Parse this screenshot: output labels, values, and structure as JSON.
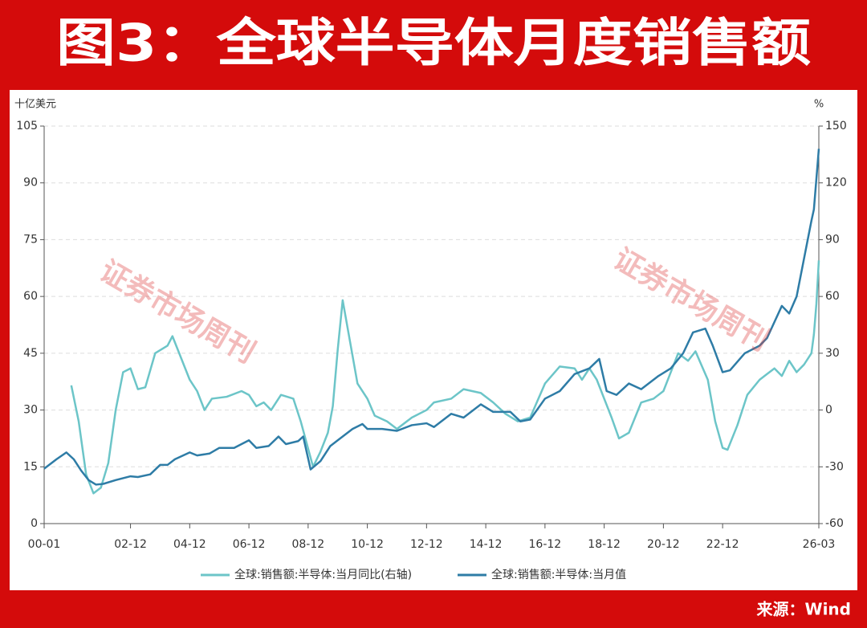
{
  "chart_data": {
    "type": "line",
    "title": "图3：全球半导体月度销售额",
    "source": "来源：Wind",
    "watermark": "证券市场周刊",
    "y_label": "十亿美元",
    "y2_label": "%",
    "xlim": [
      "00-01",
      "26-03"
    ],
    "xticks": [
      "00-01",
      "02-12",
      "04-12",
      "06-12",
      "08-12",
      "10-12",
      "12-12",
      "14-12",
      "16-12",
      "18-12",
      "20-12",
      "22-12",
      "26-03"
    ],
    "ylim": [
      0,
      105
    ],
    "yticks": [
      0,
      15,
      30,
      45,
      60,
      75,
      90,
      105
    ],
    "y2lim": [
      -60,
      150
    ],
    "y2ticks": [
      -60,
      -30,
      0,
      30,
      60,
      90,
      120,
      150
    ],
    "grid": true,
    "series": [
      {
        "name": "全球:销售额:半导体:当月同比(右轴)",
        "color": "#6cc5c8",
        "axis": "y2",
        "x": [
          "00-12",
          "01-03",
          "01-06",
          "01-09",
          "01-12",
          "02-03",
          "02-06",
          "02-09",
          "02-12",
          "03-03",
          "03-06",
          "03-10",
          "04-03",
          "04-05",
          "04-12",
          "05-03",
          "05-06",
          "05-09",
          "06-03",
          "06-09",
          "06-12",
          "07-03",
          "07-06",
          "07-09",
          "08-01",
          "08-06",
          "08-09",
          "09-02",
          "09-05",
          "09-08",
          "09-10",
          "09-12",
          "10-02",
          "10-05",
          "10-08",
          "10-12",
          "11-03",
          "11-08",
          "11-12",
          "12-06",
          "12-12",
          "13-03",
          "13-10",
          "14-03",
          "14-10",
          "15-03",
          "15-08",
          "16-01",
          "16-06",
          "16-12",
          "17-06",
          "17-12",
          "18-03",
          "18-06",
          "18-09",
          "19-03",
          "19-06",
          "19-10",
          "20-03",
          "20-08",
          "20-12",
          "21-03",
          "21-06",
          "21-10",
          "22-01",
          "22-06",
          "22-09",
          "22-12",
          "23-02",
          "23-06",
          "23-10",
          "24-03",
          "24-06",
          "24-09",
          "24-12",
          "25-03",
          "25-06",
          "25-09",
          "25-12",
          "26-01",
          "26-02",
          "26-03"
        ],
        "values": [
          13,
          -6,
          -34,
          -44,
          -41,
          -28,
          0,
          20,
          22,
          11,
          12,
          30,
          34,
          39,
          16,
          10,
          0,
          6,
          7,
          10,
          8,
          2,
          4,
          0,
          8,
          6,
          -6,
          -30,
          -22,
          -12,
          2,
          32,
          58,
          36,
          14,
          6,
          -3,
          -6,
          -10,
          -4,
          0,
          4,
          6,
          11,
          9,
          4,
          -2,
          -6,
          -4,
          14,
          23,
          22,
          16,
          22,
          16,
          -4,
          -15,
          -12,
          4,
          6,
          10,
          20,
          30,
          26,
          31,
          16,
          -6,
          -20,
          -21,
          -8,
          8,
          16,
          19,
          22,
          18,
          26,
          20,
          24,
          30,
          40,
          56,
          79
        ]
      },
      {
        "name": "全球:销售额:半导体:当月值",
        "color": "#2e7ca6",
        "x": [
          "00-01",
          "00-06",
          "00-10",
          "01-01",
          "01-04",
          "01-07",
          "01-10",
          "02-01",
          "02-06",
          "02-12",
          "03-03",
          "03-08",
          "03-12",
          "04-03",
          "04-06",
          "04-12",
          "05-03",
          "05-08",
          "05-12",
          "06-06",
          "06-12",
          "07-03",
          "07-08",
          "07-12",
          "08-03",
          "08-08",
          "08-10",
          "09-01",
          "09-05",
          "09-09",
          "09-12",
          "10-06",
          "10-10",
          "10-12",
          "11-06",
          "11-12",
          "12-06",
          "12-12",
          "13-03",
          "13-10",
          "14-03",
          "14-10",
          "15-03",
          "15-10",
          "16-02",
          "16-06",
          "16-12",
          "17-06",
          "17-12",
          "18-06",
          "18-10",
          "19-01",
          "19-05",
          "19-10",
          "20-03",
          "20-10",
          "21-03",
          "21-08",
          "21-12",
          "22-05",
          "22-08",
          "22-12",
          "23-03",
          "23-09",
          "24-03",
          "24-06",
          "24-12",
          "25-03",
          "25-06",
          "25-09",
          "25-12",
          "26-01",
          "26-03"
        ],
        "values": [
          14.5,
          17,
          18.8,
          17,
          14,
          11.5,
          10.3,
          10.5,
          11.5,
          12.5,
          12.3,
          13,
          15.5,
          15.5,
          17,
          18.8,
          18,
          18.5,
          20,
          20,
          22,
          20,
          20.5,
          23,
          21,
          21.8,
          23,
          14.3,
          16.5,
          20.5,
          22,
          25,
          26.3,
          25,
          25,
          24.5,
          26,
          26.5,
          25.5,
          29,
          28,
          31.5,
          29.5,
          29.5,
          27,
          27.5,
          33,
          35,
          39.5,
          41,
          43.5,
          35,
          34,
          37,
          35.5,
          39,
          41,
          45,
          50.5,
          51.5,
          47,
          40,
          40.5,
          45,
          47,
          49,
          57.5,
          55.5,
          60,
          70,
          80,
          83,
          99
        ]
      }
    ]
  }
}
